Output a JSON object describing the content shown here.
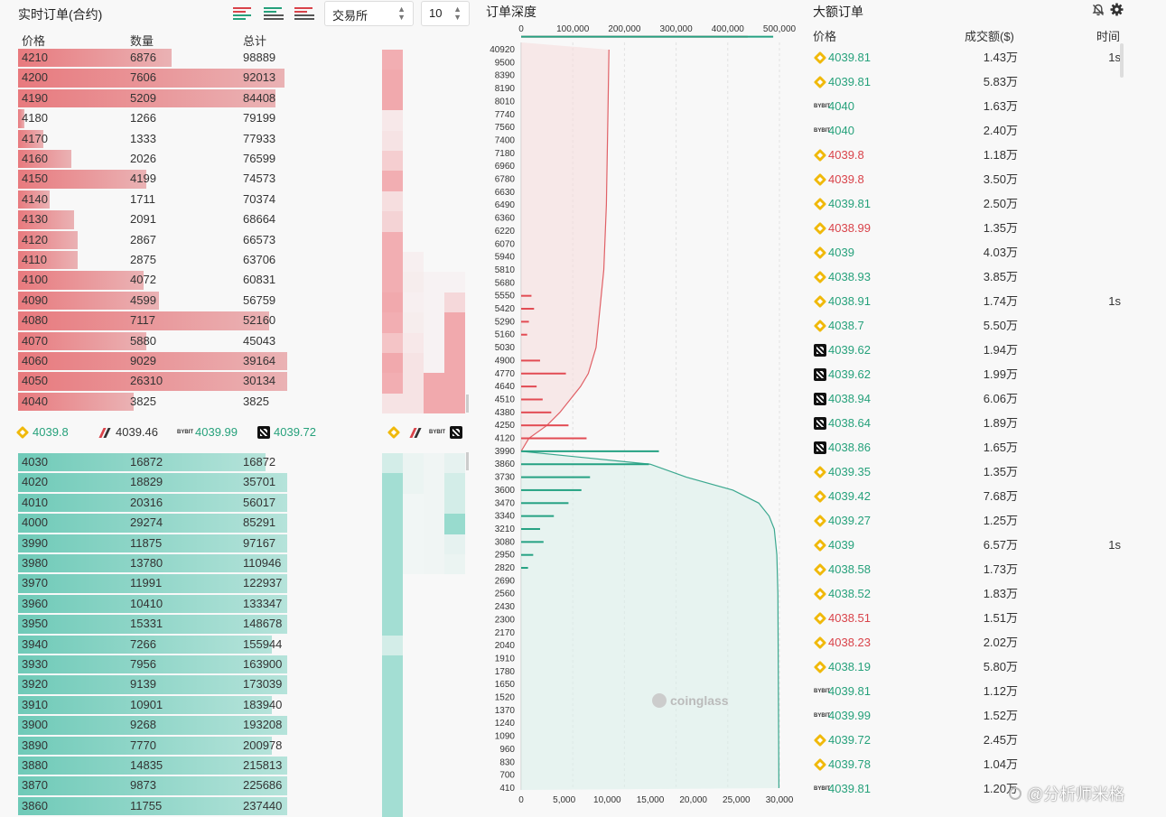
{
  "order_book": {
    "title": "实时订单(合约)",
    "exchange_select": "交易所",
    "depth_select": "10",
    "columns": {
      "price": "价格",
      "qty": "数量",
      "total": "总计"
    },
    "asks": [
      {
        "price": "4210",
        "qty": "6876",
        "total": "98889",
        "fill": 0.49
      },
      {
        "price": "4200",
        "qty": "7606",
        "total": "92013",
        "fill": 0.85
      },
      {
        "price": "4190",
        "qty": "5209",
        "total": "84408",
        "fill": 0.82
      },
      {
        "price": "4180",
        "qty": "1266",
        "total": "79199",
        "fill": 0.02
      },
      {
        "price": "4170",
        "qty": "1333",
        "total": "77933",
        "fill": 0.08
      },
      {
        "price": "4160",
        "qty": "2026",
        "total": "76599",
        "fill": 0.17
      },
      {
        "price": "4150",
        "qty": "4199",
        "total": "74573",
        "fill": 0.41
      },
      {
        "price": "4140",
        "qty": "1711",
        "total": "70374",
        "fill": 0.1
      },
      {
        "price": "4130",
        "qty": "2091",
        "total": "68664",
        "fill": 0.18
      },
      {
        "price": "4120",
        "qty": "2867",
        "total": "66573",
        "fill": 0.19
      },
      {
        "price": "4110",
        "qty": "2875",
        "total": "63706",
        "fill": 0.19
      },
      {
        "price": "4100",
        "qty": "4072",
        "total": "60831",
        "fill": 0.4
      },
      {
        "price": "4090",
        "qty": "4599",
        "total": "56759",
        "fill": 0.45
      },
      {
        "price": "4080",
        "qty": "7117",
        "total": "52160",
        "fill": 0.8
      },
      {
        "price": "4070",
        "qty": "5880",
        "total": "45043",
        "fill": 0.41
      },
      {
        "price": "4060",
        "qty": "9029",
        "total": "39164",
        "fill": 0.86
      },
      {
        "price": "4050",
        "qty": "26310",
        "total": "30134",
        "fill": 0.86
      },
      {
        "price": "4040",
        "qty": "3825",
        "total": "3825",
        "fill": 0.37
      }
    ],
    "bids": [
      {
        "price": "4030",
        "qty": "16872",
        "total": "16872",
        "fill": 0.79
      },
      {
        "price": "4020",
        "qty": "18829",
        "total": "35701",
        "fill": 0.86
      },
      {
        "price": "4010",
        "qty": "20316",
        "total": "56017",
        "fill": 0.86
      },
      {
        "price": "4000",
        "qty": "29274",
        "total": "85291",
        "fill": 0.86
      },
      {
        "price": "3990",
        "qty": "11875",
        "total": "97167",
        "fill": 0.86
      },
      {
        "price": "3980",
        "qty": "13780",
        "total": "110946",
        "fill": 0.86
      },
      {
        "price": "3970",
        "qty": "11991",
        "total": "122937",
        "fill": 0.86
      },
      {
        "price": "3960",
        "qty": "10410",
        "total": "133347",
        "fill": 0.86
      },
      {
        "price": "3950",
        "qty": "15331",
        "total": "148678",
        "fill": 0.86
      },
      {
        "price": "3940",
        "qty": "7266",
        "total": "155944",
        "fill": 0.81
      },
      {
        "price": "3930",
        "qty": "7956",
        "total": "163900",
        "fill": 0.86
      },
      {
        "price": "3920",
        "qty": "9139",
        "total": "173039",
        "fill": 0.86
      },
      {
        "price": "3910",
        "qty": "10901",
        "total": "183940",
        "fill": 0.81
      },
      {
        "price": "3900",
        "qty": "9268",
        "total": "193208",
        "fill": 0.86
      },
      {
        "price": "3890",
        "qty": "7770",
        "total": "200978",
        "fill": 0.81
      },
      {
        "price": "3880",
        "qty": "14835",
        "total": "215813",
        "fill": 0.86
      },
      {
        "price": "3870",
        "qty": "9873",
        "total": "225686",
        "fill": 0.86
      },
      {
        "price": "3860",
        "qty": "11755",
        "total": "237440",
        "fill": 0.86
      }
    ],
    "mid_prices": [
      {
        "exchange": "binance",
        "icon": "binance-icon",
        "price": "4039.8",
        "color": "#26a17b"
      },
      {
        "exchange": "bitget",
        "icon": "bitget-icon",
        "price": "4039.46",
        "color": "#333333"
      },
      {
        "exchange": "bybit",
        "icon": "bybit-icon",
        "price": "4039.99",
        "color": "#26a17b"
      },
      {
        "exchange": "okx",
        "icon": "okx-icon",
        "price": "4039.72",
        "color": "#26a17b"
      }
    ],
    "bybit_label": "BYBIT",
    "colors": {
      "ask": "#e87a7e",
      "bid": "#6fcab8",
      "up": "#26a17b",
      "down": "#d9434a"
    }
  },
  "depth": {
    "title": "订单深度",
    "watermark": "coinglass"
  },
  "chart_data": {
    "type": "area",
    "orientation": "horizontal",
    "top_axis_label": "",
    "top_axis_ticks": [
      "0",
      "100,000",
      "200,000",
      "300,000",
      "400,000",
      "500,000"
    ],
    "top_axis_range": [
      0,
      500000
    ],
    "bottom_axis_ticks": [
      "0",
      "5,000",
      "10,000",
      "15,000",
      "20,000",
      "25,000",
      "30,000"
    ],
    "bottom_axis_range": [
      0,
      30000
    ],
    "price_ticks": [
      "40920",
      "9500",
      "8390",
      "8190",
      "8010",
      "7740",
      "7560",
      "7400",
      "7180",
      "6960",
      "6780",
      "6630",
      "6490",
      "6360",
      "6220",
      "6070",
      "5940",
      "5810",
      "5680",
      "5550",
      "5420",
      "5290",
      "5160",
      "5030",
      "4900",
      "4770",
      "4640",
      "4510",
      "4380",
      "4250",
      "4120",
      "3990",
      "3860",
      "3730",
      "3600",
      "3470",
      "3340",
      "3210",
      "3080",
      "2950",
      "2820",
      "2690",
      "2560",
      "2430",
      "2300",
      "2170",
      "2040",
      "1910",
      "1780",
      "1650",
      "1520",
      "1370",
      "1240",
      "1090",
      "960",
      "830",
      "700",
      "410"
    ],
    "ask_cumulative": [
      {
        "price": "40920",
        "cum": 170000
      },
      {
        "price": "7740",
        "cum": 168000
      },
      {
        "price": "6490",
        "cum": 165000
      },
      {
        "price": "5810",
        "cum": 160000
      },
      {
        "price": "5290",
        "cum": 150000
      },
      {
        "price": "5030",
        "cum": 145000
      },
      {
        "price": "4770",
        "cum": 130000
      },
      {
        "price": "4640",
        "cum": 115000
      },
      {
        "price": "4510",
        "cum": 95000
      },
      {
        "price": "4380",
        "cum": 75000
      },
      {
        "price": "4250",
        "cum": 50000
      },
      {
        "price": "4120",
        "cum": 15000
      },
      {
        "price": "3990",
        "cum": 0
      }
    ],
    "bid_cumulative": [
      {
        "price": "3990",
        "cum": 0
      },
      {
        "price": "3860",
        "cum": 250000
      },
      {
        "price": "3730",
        "cum": 320000
      },
      {
        "price": "3600",
        "cum": 410000
      },
      {
        "price": "3470",
        "cum": 460000
      },
      {
        "price": "3340",
        "cum": 480000
      },
      {
        "price": "3210",
        "cum": 490000
      },
      {
        "price": "2950",
        "cum": 495000
      },
      {
        "price": "2560",
        "cum": 497000
      },
      {
        "price": "1520",
        "cum": 498000
      },
      {
        "price": "410",
        "cum": 499000
      }
    ],
    "ask_bars": [
      {
        "price": "5550",
        "qty": 1200
      },
      {
        "price": "5420",
        "qty": 1500
      },
      {
        "price": "5290",
        "qty": 900
      },
      {
        "price": "5160",
        "qty": 700
      },
      {
        "price": "4900",
        "qty": 2200
      },
      {
        "price": "4770",
        "qty": 5200
      },
      {
        "price": "4640",
        "qty": 1800
      },
      {
        "price": "4510",
        "qty": 2500
      },
      {
        "price": "4380",
        "qty": 3500
      },
      {
        "price": "4250",
        "qty": 5500
      },
      {
        "price": "4120",
        "qty": 7600
      },
      {
        "price": "4050",
        "qty": 26310
      }
    ],
    "bid_bars": [
      {
        "price": "4000",
        "qty": 29274
      },
      {
        "price": "3990",
        "qty": 16000
      },
      {
        "price": "3860",
        "qty": 14835
      },
      {
        "price": "3730",
        "qty": 8000
      },
      {
        "price": "3600",
        "qty": 7000
      },
      {
        "price": "3470",
        "qty": 5500
      },
      {
        "price": "3340",
        "qty": 3800
      },
      {
        "price": "3210",
        "qty": 2200
      },
      {
        "price": "3080",
        "qty": 2600
      },
      {
        "price": "2950",
        "qty": 1400
      },
      {
        "price": "2820",
        "qty": 800
      }
    ]
  },
  "large_orders": {
    "title": "大额订单",
    "columns": {
      "price": "价格",
      "amount": "成交额($)",
      "time": "时间"
    },
    "rows": [
      {
        "ex": "binance",
        "price": "4039.81",
        "side": "up",
        "amount": "1.43万",
        "time": "1s"
      },
      {
        "ex": "binance",
        "price": "4039.81",
        "side": "up",
        "amount": "5.83万",
        "time": ""
      },
      {
        "ex": "bybit",
        "price": "4040",
        "side": "up",
        "amount": "1.63万",
        "time": ""
      },
      {
        "ex": "bybit",
        "price": "4040",
        "side": "up",
        "amount": "2.40万",
        "time": ""
      },
      {
        "ex": "binance",
        "price": "4039.8",
        "side": "down",
        "amount": "1.18万",
        "time": ""
      },
      {
        "ex": "binance",
        "price": "4039.8",
        "side": "down",
        "amount": "3.50万",
        "time": ""
      },
      {
        "ex": "binance",
        "price": "4039.81",
        "side": "up",
        "amount": "2.50万",
        "time": ""
      },
      {
        "ex": "binance",
        "price": "4038.99",
        "side": "down",
        "amount": "1.35万",
        "time": ""
      },
      {
        "ex": "binance",
        "price": "4039",
        "side": "up",
        "amount": "4.03万",
        "time": ""
      },
      {
        "ex": "binance",
        "price": "4038.93",
        "side": "up",
        "amount": "3.85万",
        "time": ""
      },
      {
        "ex": "binance",
        "price": "4038.91",
        "side": "up",
        "amount": "1.74万",
        "time": "1s"
      },
      {
        "ex": "binance",
        "price": "4038.7",
        "side": "up",
        "amount": "5.50万",
        "time": ""
      },
      {
        "ex": "okx",
        "price": "4039.62",
        "side": "up",
        "amount": "1.94万",
        "time": ""
      },
      {
        "ex": "okx",
        "price": "4039.62",
        "side": "up",
        "amount": "1.99万",
        "time": ""
      },
      {
        "ex": "okx",
        "price": "4038.94",
        "side": "up",
        "amount": "6.06万",
        "time": ""
      },
      {
        "ex": "okx",
        "price": "4038.64",
        "side": "up",
        "amount": "1.89万",
        "time": ""
      },
      {
        "ex": "okx",
        "price": "4038.86",
        "side": "up",
        "amount": "1.65万",
        "time": ""
      },
      {
        "ex": "binance",
        "price": "4039.35",
        "side": "up",
        "amount": "1.35万",
        "time": ""
      },
      {
        "ex": "binance",
        "price": "4039.42",
        "side": "up",
        "amount": "7.68万",
        "time": ""
      },
      {
        "ex": "binance",
        "price": "4039.27",
        "side": "up",
        "amount": "1.25万",
        "time": ""
      },
      {
        "ex": "binance",
        "price": "4039",
        "side": "up",
        "amount": "6.57万",
        "time": "1s"
      },
      {
        "ex": "binance",
        "price": "4038.58",
        "side": "up",
        "amount": "1.73万",
        "time": ""
      },
      {
        "ex": "binance",
        "price": "4038.52",
        "side": "up",
        "amount": "1.83万",
        "time": ""
      },
      {
        "ex": "binance",
        "price": "4038.51",
        "side": "down",
        "amount": "1.51万",
        "time": ""
      },
      {
        "ex": "binance",
        "price": "4038.23",
        "side": "down",
        "amount": "2.02万",
        "time": ""
      },
      {
        "ex": "binance",
        "price": "4038.19",
        "side": "up",
        "amount": "5.80万",
        "time": ""
      },
      {
        "ex": "bybit",
        "price": "4039.81",
        "side": "up",
        "amount": "1.12万",
        "time": ""
      },
      {
        "ex": "bybit",
        "price": "4039.99",
        "side": "up",
        "amount": "1.52万",
        "time": ""
      },
      {
        "ex": "binance",
        "price": "4039.72",
        "side": "up",
        "amount": "2.45万",
        "time": ""
      },
      {
        "ex": "binance",
        "price": "4039.78",
        "side": "up",
        "amount": "1.04万",
        "time": ""
      },
      {
        "ex": "bybit",
        "price": "4039.81",
        "side": "up",
        "amount": "1.20万",
        "time": ""
      }
    ],
    "footer_watermark": "@分析师米格"
  }
}
